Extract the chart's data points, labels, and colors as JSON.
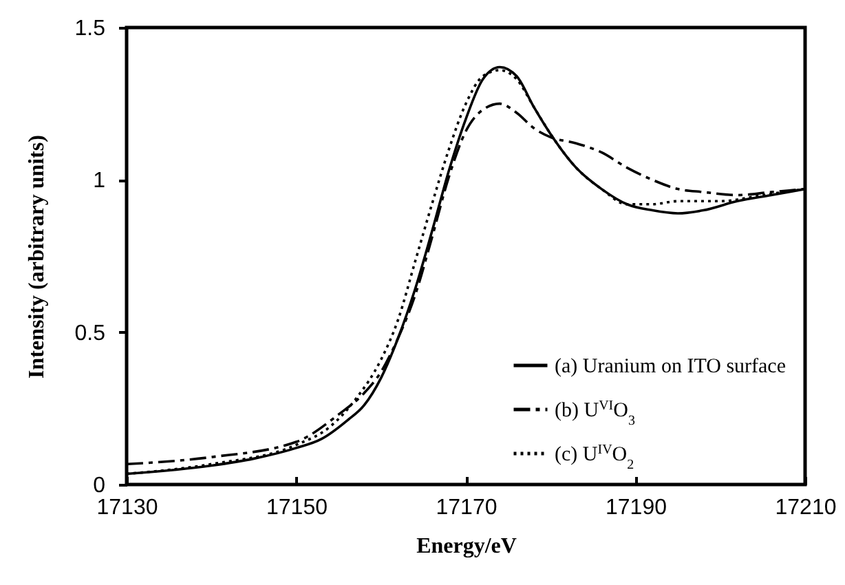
{
  "chart_data": {
    "type": "line",
    "xlabel": "Energy/eV",
    "ylabel": "Intensity (arbitrary units)",
    "xlim": [
      17130,
      17210
    ],
    "xticks": [
      17130,
      17150,
      17170,
      17190,
      17210
    ],
    "ylim": [
      0,
      1.5
    ],
    "yticks": [
      0,
      0.5,
      1,
      1.5
    ],
    "grid": false,
    "legend": "bottom right",
    "series": [
      {
        "name": "(a) Uranium on ITO surface",
        "color": "#000000",
        "line_style": "solid",
        "x": [
          17130,
          17140,
          17145,
          17150,
          17153,
          17156,
          17158,
          17160,
          17162,
          17164,
          17166,
          17168,
          17170,
          17172,
          17174,
          17176,
          17178,
          17180,
          17183,
          17186,
          17189,
          17192,
          17195,
          17198,
          17202,
          17206,
          17210
        ],
        "values": [
          0.035,
          0.062,
          0.085,
          0.12,
          0.15,
          0.21,
          0.26,
          0.35,
          0.48,
          0.64,
          0.83,
          1.03,
          1.2,
          1.33,
          1.37,
          1.34,
          1.24,
          1.15,
          1.04,
          0.97,
          0.92,
          0.9,
          0.89,
          0.9,
          0.93,
          0.95,
          0.97
        ]
      },
      {
        "name": "(b) U$^{VI}$O$_{3}$",
        "color": "#000000",
        "line_style": "dashdot",
        "x": [
          17130,
          17140,
          17150,
          17155,
          17158,
          17160,
          17162,
          17164,
          17166,
          17168,
          17170,
          17172,
          17174,
          17176,
          17178,
          17180,
          17183,
          17186,
          17189,
          17192,
          17195,
          17198,
          17202,
          17206,
          17210
        ],
        "values": [
          0.067,
          0.09,
          0.14,
          0.23,
          0.3,
          0.37,
          0.48,
          0.62,
          0.81,
          1.01,
          1.16,
          1.23,
          1.25,
          1.22,
          1.17,
          1.14,
          1.12,
          1.09,
          1.04,
          1.0,
          0.97,
          0.96,
          0.95,
          0.96,
          0.97
        ]
      },
      {
        "name": "(c) U$^{IV}$O$_{2}$",
        "color": "#000000",
        "line_style": "dotted",
        "x": [
          17130,
          17140,
          17150,
          17154,
          17157,
          17160,
          17162,
          17164,
          17166,
          17168,
          17170,
          17172,
          17174,
          17176,
          17178,
          17180,
          17183,
          17186,
          17189,
          17192,
          17195,
          17200,
          17205,
          17210
        ],
        "values": [
          0.035,
          0.067,
          0.13,
          0.19,
          0.28,
          0.41,
          0.54,
          0.73,
          0.92,
          1.1,
          1.25,
          1.34,
          1.36,
          1.33,
          1.24,
          1.15,
          1.04,
          0.97,
          0.92,
          0.92,
          0.93,
          0.93,
          0.95,
          0.97
        ]
      }
    ]
  }
}
